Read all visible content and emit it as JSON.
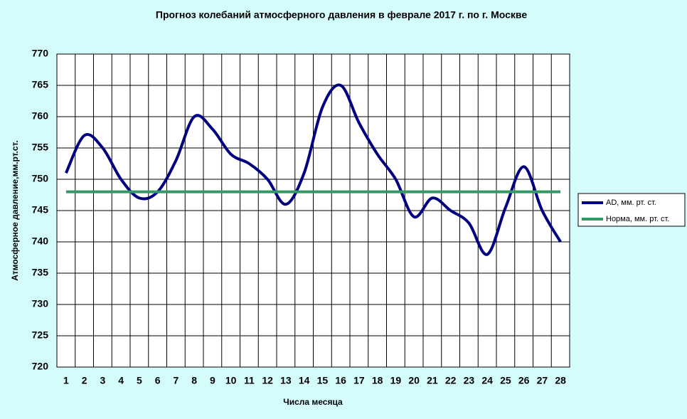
{
  "chart_data": {
    "type": "line",
    "title": "Прогноз колебаний атмосферного давления в феврале 2017 г. по г. Москве",
    "x_label": "Числа месяца",
    "y_label": "Атмосферное давление,мм.рт.ст.",
    "categories": [
      1,
      2,
      3,
      4,
      5,
      6,
      7,
      8,
      9,
      10,
      11,
      12,
      13,
      14,
      15,
      16,
      17,
      18,
      19,
      20,
      21,
      22,
      23,
      24,
      25,
      26,
      27,
      28
    ],
    "series": [
      {
        "name": "AD, мм. рт. ст.",
        "color": "#000080",
        "values": [
          751,
          757,
          755,
          750,
          747,
          748,
          753,
          760,
          758,
          754,
          752.5,
          750,
          746,
          751,
          761.5,
          765,
          759,
          754,
          750,
          744,
          747,
          745,
          743,
          738,
          745.5,
          752,
          745,
          740
        ]
      },
      {
        "name": "Норма, мм. рт. ст.",
        "color": "#339966",
        "values": [
          748,
          748,
          748,
          748,
          748,
          748,
          748,
          748,
          748,
          748,
          748,
          748,
          748,
          748,
          748,
          748,
          748,
          748,
          748,
          748,
          748,
          748,
          748,
          748,
          748,
          748,
          748,
          748
        ]
      }
    ],
    "ylim": [
      720,
      770
    ],
    "yticks": [
      720,
      725,
      730,
      735,
      740,
      745,
      750,
      755,
      760,
      765,
      770
    ],
    "grid": true,
    "legend": "right"
  }
}
